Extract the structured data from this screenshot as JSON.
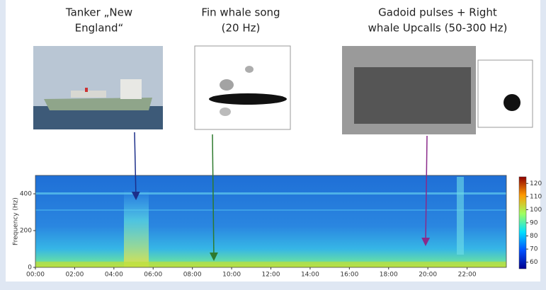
{
  "captions": [
    {
      "lines": [
        "Tanker „New",
        "England“"
      ]
    },
    {
      "lines": [
        "Fin whale song",
        "(20 Hz)"
      ]
    },
    {
      "lines": [
        "Gadoid pulses + Right",
        "whale Upcalls (50-300 Hz)"
      ]
    }
  ],
  "spectrogram": {
    "y_label": "Frequency (Hz)",
    "ylim": [
      0,
      500
    ],
    "yticks": [
      0,
      200,
      400
    ],
    "xlim": [
      0,
      24
    ],
    "xticks": [
      {
        "value": 0,
        "label": "00:00"
      },
      {
        "value": 2,
        "label": "02:00"
      },
      {
        "value": 4,
        "label": "04:00"
      },
      {
        "value": 6,
        "label": "06:00"
      },
      {
        "value": 8,
        "label": "08:00"
      },
      {
        "value": 10,
        "label": "10:00"
      },
      {
        "value": 12,
        "label": "12:00"
      },
      {
        "value": 14,
        "label": "14:00"
      },
      {
        "value": 16,
        "label": "16:00"
      },
      {
        "value": 18,
        "label": "18:00"
      },
      {
        "value": 20,
        "label": "20:00"
      },
      {
        "value": 22,
        "label": "22:00"
      }
    ],
    "colorbar": {
      "lim": [
        55,
        125
      ],
      "ticks": [
        60,
        70,
        80,
        90,
        100,
        110,
        120
      ]
    }
  }
}
